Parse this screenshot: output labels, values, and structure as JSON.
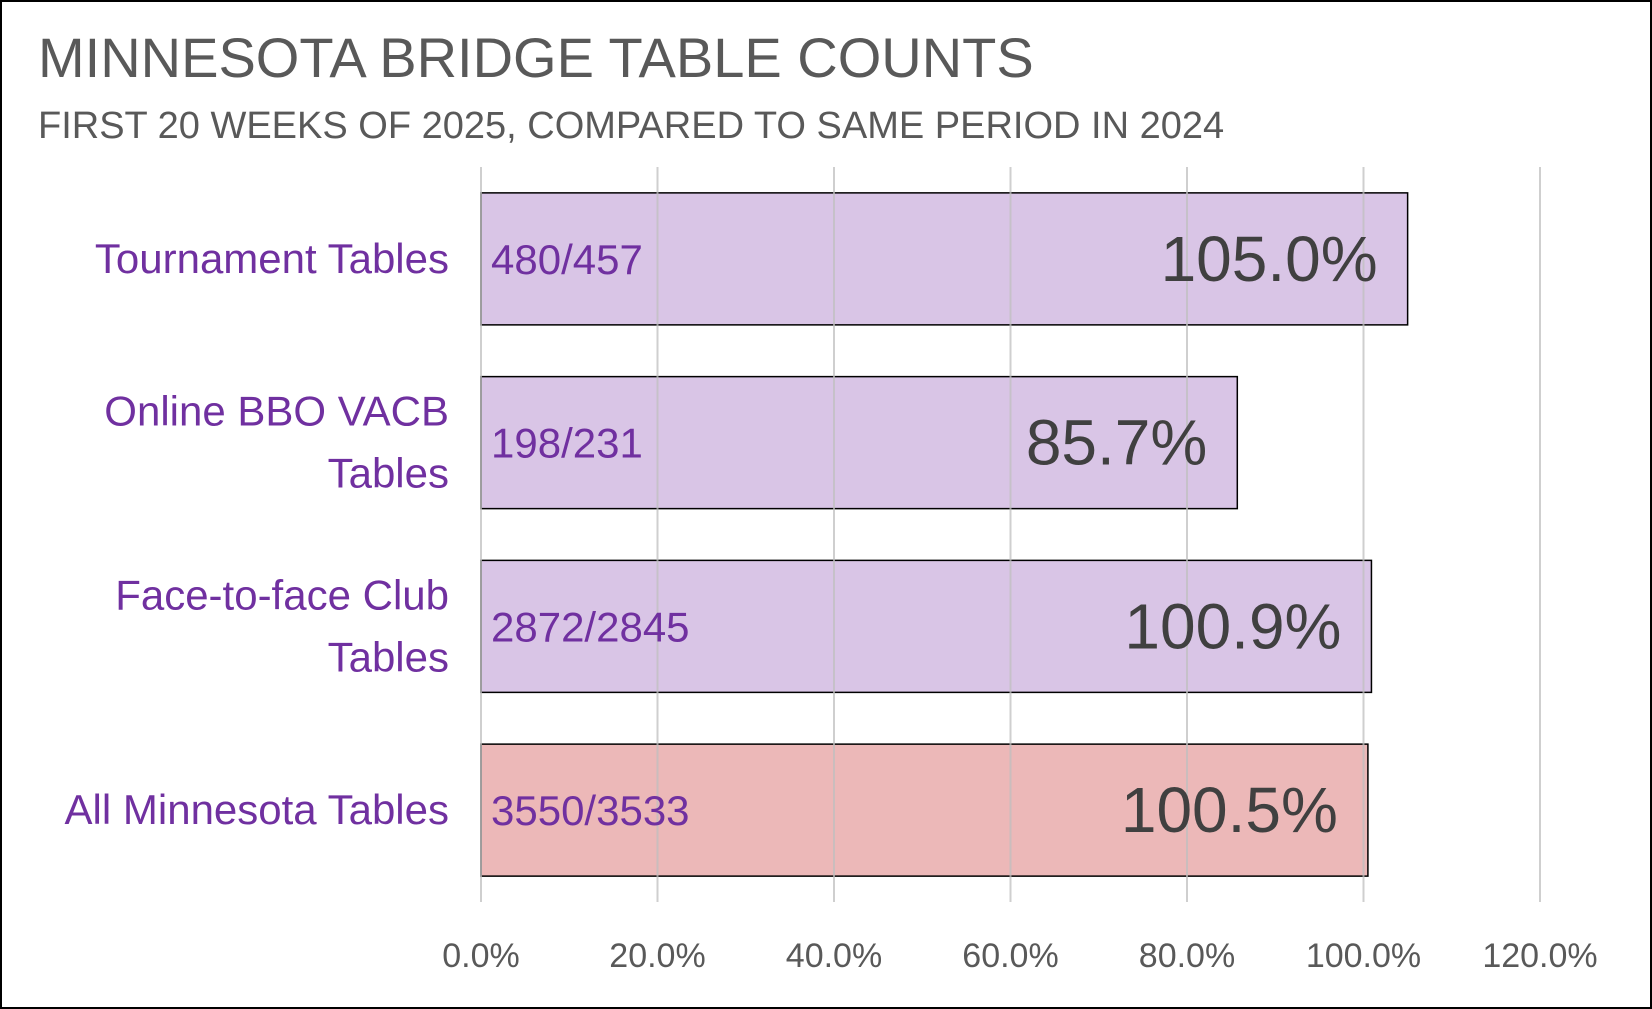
{
  "chart_data": {
    "type": "bar",
    "orientation": "horizontal",
    "title": "MINNESOTA BRIDGE TABLE COUNTS",
    "subtitle": "FIRST 20 WEEKS OF 2025, COMPARED TO SAME PERIOD IN 2024",
    "categories": [
      "Tournament Tables",
      "Online BBO VACB Tables",
      "Face-to-face Club Tables",
      "All Minnesota Tables"
    ],
    "category_label_lines": [
      [
        "Tournament Tables"
      ],
      [
        "Online BBO VACB",
        "Tables"
      ],
      [
        "Face-to-face Club",
        "Tables"
      ],
      [
        "All Minnesota Tables"
      ]
    ],
    "values": [
      105.0,
      85.7,
      100.9,
      100.5
    ],
    "value_labels": [
      "105.0%",
      "85.7%",
      "100.9%",
      "100.5%"
    ],
    "count_labels": [
      "480/457",
      "198/231",
      "2872/2845",
      "3550/3533"
    ],
    "bar_colors": [
      "#D9C5E6",
      "#D9C5E6",
      "#D9C5E6",
      "#ECB8B8"
    ],
    "xlim": [
      0,
      120
    ],
    "x_ticks": [
      0,
      20,
      40,
      60,
      80,
      100,
      120
    ],
    "x_tick_labels": [
      "0.0%",
      "20.0%",
      "40.0%",
      "60.0%",
      "80.0%",
      "100.0%",
      "120.0%"
    ],
    "grid": true,
    "legend": "none"
  }
}
